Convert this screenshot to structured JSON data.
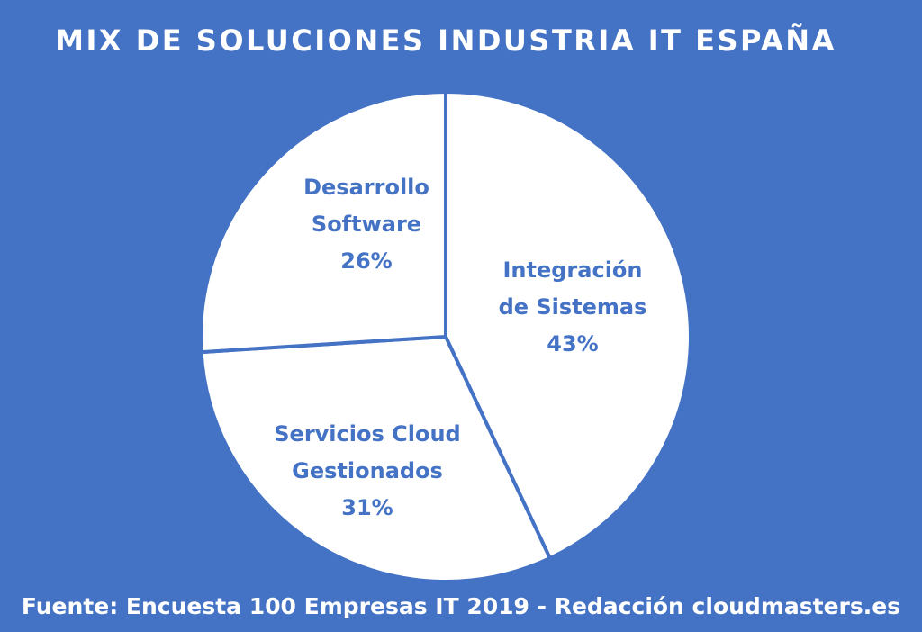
{
  "title": "MIX DE SOLUCIONES INDUSTRIA IT ESPAÑA",
  "footer": "Fuente: Encuesta 100 Empresas IT 2019 - Redacción cloudmasters.es",
  "colors": {
    "background": "#4472c4",
    "slice_fill": "#ffffff",
    "label_text": "#4472c4",
    "title_text": "#ffffff"
  },
  "chart_data": {
    "type": "pie",
    "title": "MIX DE SOLUCIONES INDUSTRIA IT ESPAÑA",
    "slices": [
      {
        "label_lines": [
          "Integración",
          "de Sistemas"
        ],
        "value": 43,
        "value_label": "43%"
      },
      {
        "label_lines": [
          "Servicios Cloud",
          "Gestionados"
        ],
        "value": 31,
        "value_label": "31%"
      },
      {
        "label_lines": [
          "Desarrollo",
          "Software"
        ],
        "value": 26,
        "value_label": "26%"
      }
    ],
    "legend": "none",
    "labels_inside": true
  }
}
